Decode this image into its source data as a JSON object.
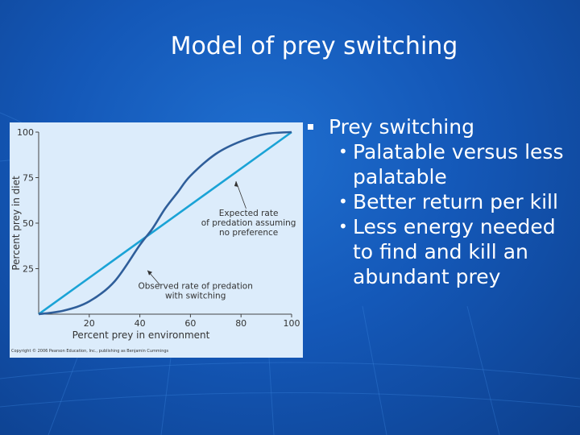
{
  "slide": {
    "title": "Model of prey switching"
  },
  "bullets": {
    "main": "Prey switching",
    "subs": [
      "Palatable versus less palatable",
      "Better return per kill",
      "Less energy needed to find and kill an abundant prey"
    ]
  },
  "chart_data": {
    "type": "line",
    "xlabel": "Percent prey in environment",
    "ylabel": "Percent prey in diet",
    "xlim": [
      0,
      100
    ],
    "ylim": [
      0,
      100
    ],
    "x_ticks": [
      20,
      40,
      60,
      80,
      100
    ],
    "y_ticks": [
      25,
      50,
      75,
      100
    ],
    "grid": false,
    "series": [
      {
        "name": "Expected rate of predation assuming no preference",
        "color": "#1aa3d6",
        "x": [
          0,
          100
        ],
        "y": [
          0,
          100
        ]
      },
      {
        "name": "Observed rate of predation with switching",
        "color": "#2f5e9a",
        "x": [
          0,
          10,
          20,
          30,
          40,
          45,
          50,
          55,
          60,
          70,
          80,
          90,
          100
        ],
        "y": [
          0,
          2,
          7,
          18,
          38,
          47,
          58,
          67,
          76,
          88,
          95,
          99,
          100
        ]
      }
    ],
    "annotations": [
      {
        "text_lines": [
          "Expected rate",
          "of predation assuming",
          "no preference"
        ]
      },
      {
        "text_lines": [
          "Observed rate of predation",
          "with switching"
        ]
      }
    ],
    "copyright": "Copyright © 2006 Pearson Education, Inc., publishing as Benjamin Cummings"
  }
}
